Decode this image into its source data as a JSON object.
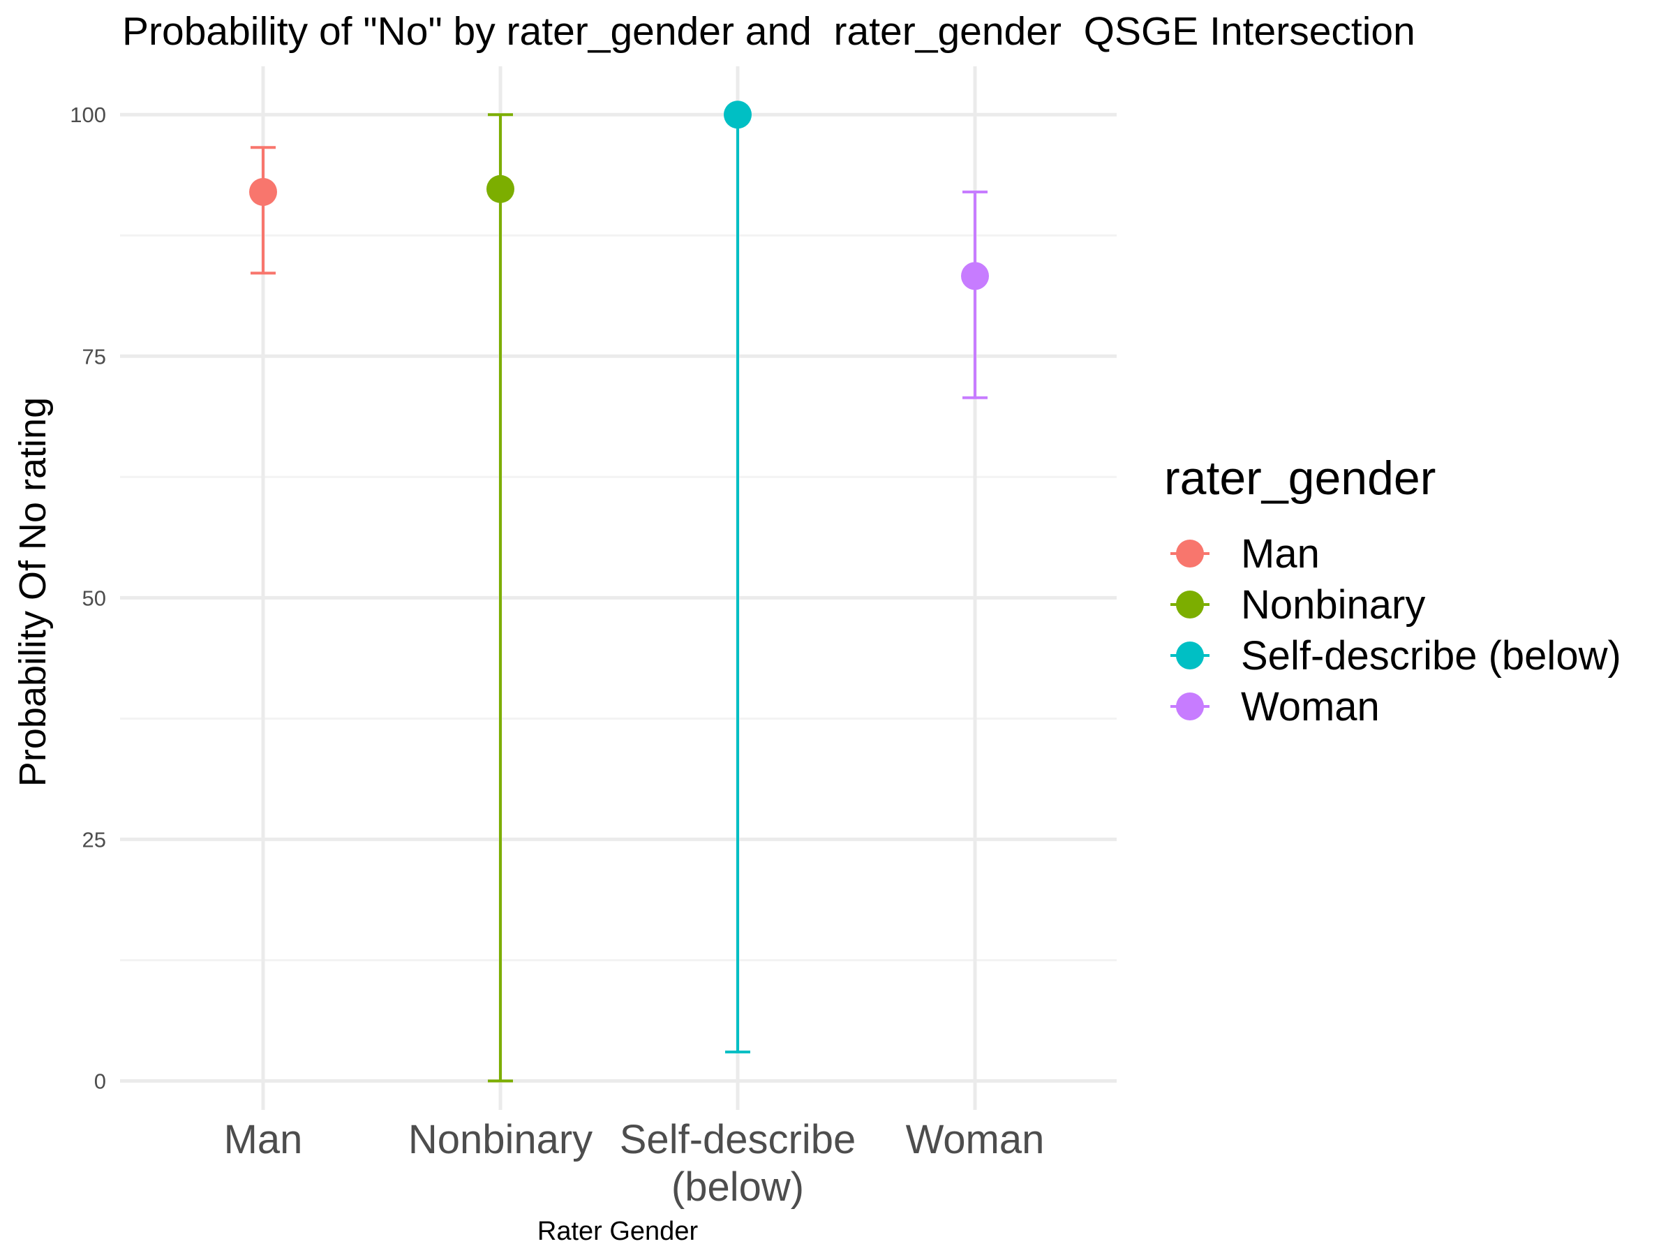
{
  "chart_data": {
    "type": "scatter",
    "title": "Probability of \"No\" by rater_gender and  rater_gender  QSGE Intersection",
    "xlabel": "Rater Gender",
    "ylabel": "Probability Of No rating",
    "ylim": [
      -3,
      105
    ],
    "yticks": [
      0,
      25,
      50,
      75,
      100
    ],
    "yticks_minor": [
      12.5,
      37.5,
      62.5,
      87.5
    ],
    "grid": true,
    "categories": [
      [
        "Man"
      ],
      [
        "Nonbinary"
      ],
      [
        "Self-describe",
        "(below)"
      ],
      [
        "Woman"
      ]
    ],
    "series": [
      {
        "name": "Man",
        "color": "#F8766D",
        "x": "Man",
        "y": 92.0,
        "ymin": 83.6,
        "ymax": 96.6
      },
      {
        "name": "Nonbinary",
        "color": "#7CAE00",
        "x": "Nonbinary",
        "y": 92.3,
        "ymin": 0.0,
        "ymax": 100.0
      },
      {
        "name": "Self-describe (below)",
        "color": "#00BFC4",
        "x": "Self-describe (below)",
        "y": 100.0,
        "ymin": 3.0,
        "ymax": 100.0
      },
      {
        "name": "Woman",
        "color": "#C77CFF",
        "x": "Woman",
        "y": 83.3,
        "ymin": 70.7,
        "ymax": 92.0
      }
    ],
    "legend": {
      "title": "rater_gender",
      "placement": "right"
    }
  }
}
